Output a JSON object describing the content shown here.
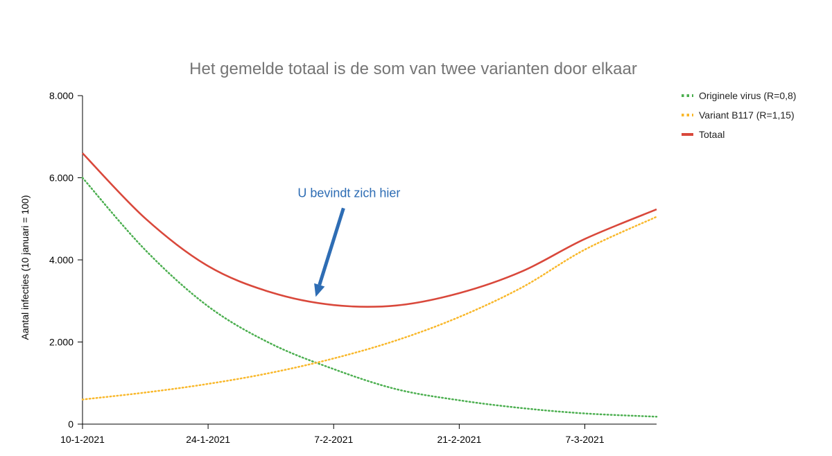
{
  "chart_data": {
    "type": "line",
    "title": "Het gemelde totaal is de som van twee varianten door elkaar",
    "ylabel": "Aantal infecties (10 januari = 100)",
    "xlabel": "",
    "x_start": "10-1-2021",
    "x_end": "15-3-2021",
    "x_ticks": [
      "10-1-2021",
      "24-1-2021",
      "7-2-2021",
      "21-2-2021",
      "7-3-2021"
    ],
    "y_ticks": [
      "0",
      "2.000",
      "4.000",
      "6.000",
      "8.000"
    ],
    "ylim": [
      0,
      8000
    ],
    "grid": false,
    "legend_position": "top-right",
    "series": [
      {
        "name": "Originele virus (R=0,8)",
        "color": "#4caf50",
        "style": "dotted",
        "x": [
          "10-1-2021",
          "17-1-2021",
          "24-1-2021",
          "31-1-2021",
          "7-2-2021",
          "14-2-2021",
          "21-2-2021",
          "28-2-2021",
          "7-3-2021",
          "15-3-2021"
        ],
        "values": [
          6000,
          4240,
          2870,
          1960,
          1340,
          850,
          580,
          390,
          260,
          180
        ]
      },
      {
        "name": "Variant B117 (R=1,15)",
        "color": "#f9b82b",
        "style": "dotted",
        "x": [
          "10-1-2021",
          "17-1-2021",
          "24-1-2021",
          "31-1-2021",
          "7-2-2021",
          "14-2-2021",
          "21-2-2021",
          "28-2-2021",
          "7-3-2021",
          "15-3-2021"
        ],
        "values": [
          600,
          770,
          980,
          1250,
          1600,
          2040,
          2610,
          3330,
          4250,
          5050
        ]
      },
      {
        "name": "Totaal",
        "color": "#d9483b",
        "style": "solid",
        "x": [
          "10-1-2021",
          "17-1-2021",
          "24-1-2021",
          "31-1-2021",
          "7-2-2021",
          "14-2-2021",
          "21-2-2021",
          "28-2-2021",
          "7-3-2021",
          "15-3-2021"
        ],
        "values": [
          6600,
          5010,
          3850,
          3210,
          2900,
          2890,
          3190,
          3720,
          4510,
          5230
        ]
      }
    ],
    "annotation": {
      "text": "U bevindt zich hier",
      "color": "#2e6db4",
      "target_x": "5-2-2021",
      "target_y": 3100
    }
  }
}
